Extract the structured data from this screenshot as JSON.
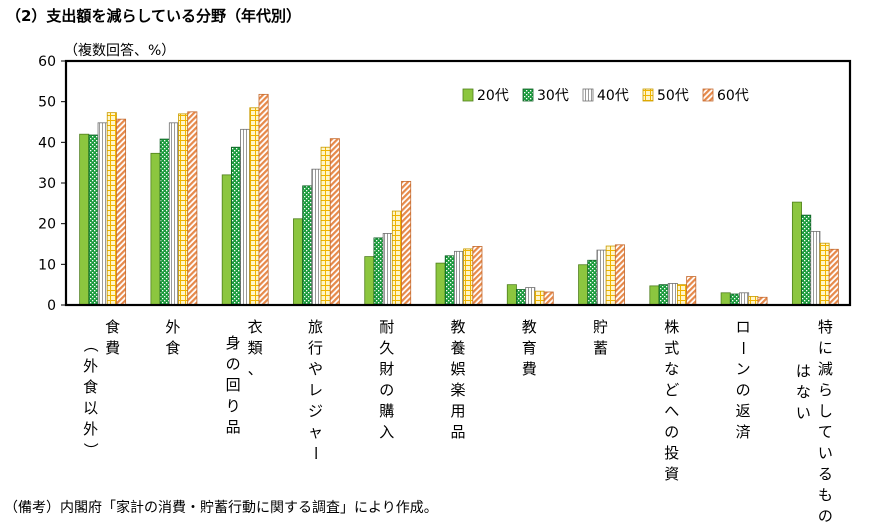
{
  "title": "（2）支出額を減らしている分野（年代別）",
  "unit_label": "（複数回答、%）",
  "note": "（備考）内閣府「家計の消費・貯蓄行動に関する調査」により作成。",
  "colors": {
    "20s": "#8cc63f",
    "30s": "#1a9b3c",
    "40s": "#ececec",
    "50s": "#ffe680",
    "60s": "#f4a76b"
  },
  "chart_data": {
    "type": "bar",
    "ylim": [
      0,
      60
    ],
    "yticks": [
      "0",
      "10",
      "20",
      "30",
      "40",
      "50",
      "60"
    ],
    "grid": false,
    "legend_position": "top-right",
    "categories": [
      "食費（外食以外）",
      "外食",
      "衣類、身の回り品",
      "旅行やレジャー",
      "耐久財の購入",
      "教養娯楽用品",
      "教育費",
      "貯蓄",
      "株式などへの投資",
      "ローンの返済",
      "特に減らしているものはない"
    ],
    "category_lines": [
      [
        "食費",
        "（外食以外）"
      ],
      [
        "外食"
      ],
      [
        "衣類、",
        "身の回り品"
      ],
      [
        "旅行やレジャー"
      ],
      [
        "耐久財の購入"
      ],
      [
        "教養娯楽用品"
      ],
      [
        "教育費"
      ],
      [
        "貯蓄"
      ],
      [
        "株式などへの投資"
      ],
      [
        "ローンの返済"
      ],
      [
        "特に減らしているもの",
        "はない"
      ]
    ],
    "series": [
      {
        "name": "20代",
        "values": [
          42.0,
          37.3,
          32.0,
          21.2,
          11.9,
          10.3,
          5.0,
          9.9,
          4.7,
          3.0,
          25.3
        ]
      },
      {
        "name": "30代",
        "values": [
          41.8,
          40.8,
          38.8,
          29.3,
          16.5,
          12.1,
          3.8,
          11.0,
          5.0,
          2.7,
          22.1
        ]
      },
      {
        "name": "40代",
        "values": [
          44.8,
          44.8,
          43.2,
          33.4,
          17.6,
          13.2,
          4.3,
          13.5,
          5.3,
          3.0,
          18.1
        ]
      },
      {
        "name": "50代",
        "values": [
          47.3,
          47.0,
          48.5,
          38.8,
          23.1,
          13.8,
          3.4,
          14.5,
          5.0,
          2.1,
          15.2
        ]
      },
      {
        "name": "60代",
        "values": [
          45.7,
          47.5,
          51.8,
          40.9,
          30.4,
          14.4,
          3.2,
          14.8,
          7.0,
          1.9,
          13.7
        ]
      }
    ]
  }
}
